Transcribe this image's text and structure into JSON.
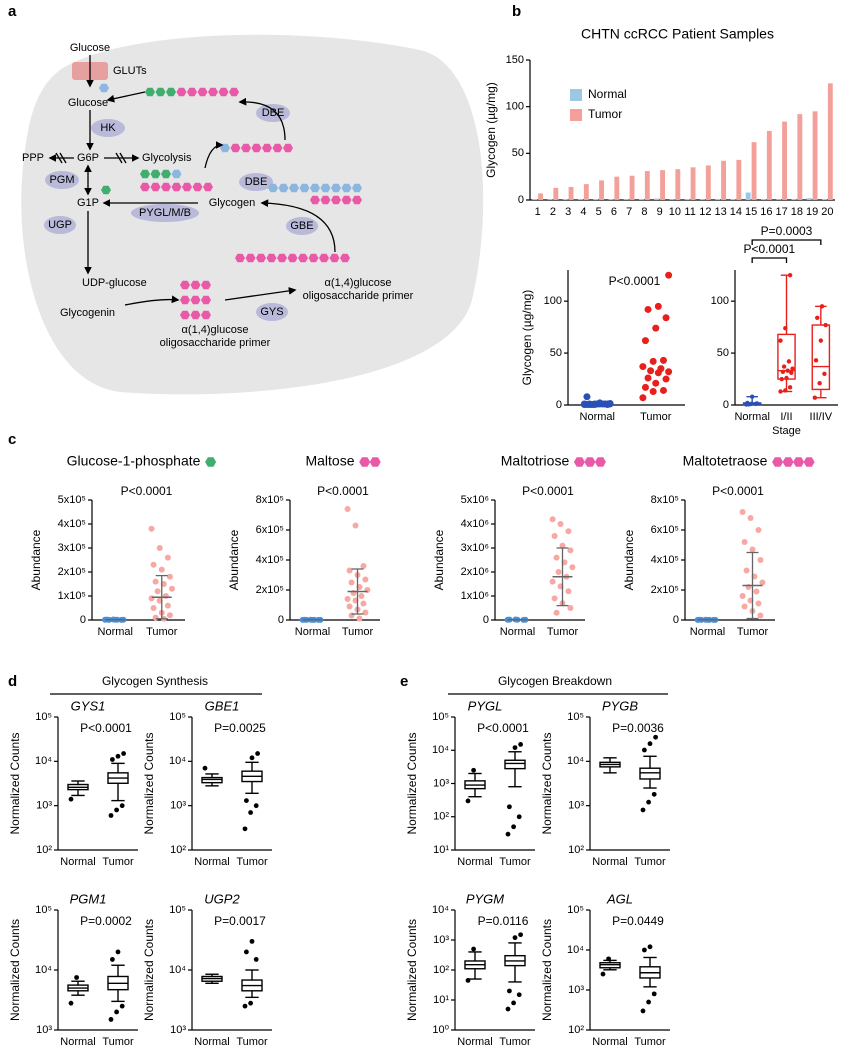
{
  "panel_labels": [
    "a",
    "b",
    "c",
    "d",
    "e"
  ],
  "diagram": {
    "glucose_in": "Glucose",
    "gluts": "GLUTs",
    "glucose": "Glucose",
    "hk": "HK",
    "ppp": "PPP",
    "g6p": "G6P",
    "glycolysis": "Glycolysis",
    "pgm": "PGM",
    "g1p": "G1P",
    "ugp": "UGP",
    "udp_glucose": "UDP-glucose",
    "glycogenin": "Glycogenin",
    "primer1": [
      "α(1,4)glucose",
      "oligosaccharide primer"
    ],
    "gys": "GYS",
    "pygl": "PYGL/M/B",
    "glycogen": "Glycogen",
    "gbe": "GBE",
    "primer2": [
      "α(1,4)glucose",
      "oligosaccharide primer"
    ],
    "dbe1": "DBE",
    "dbe2": "DBE"
  },
  "sections": [
    "Glycogen Synthesis",
    "Glycogen Breakdown"
  ],
  "chart_data": [
    {
      "type": "bar",
      "title": "CHTN ccRCC Patient Samples",
      "y_label": "Glycogen (µg/mg)",
      "categories": [
        "1",
        "2",
        "3",
        "4",
        "5",
        "6",
        "7",
        "8",
        "9",
        "10",
        "11",
        "12",
        "13",
        "14",
        "15",
        "16",
        "17",
        "18",
        "19",
        "20"
      ],
      "series": [
        {
          "name": "Normal",
          "color": "#9cc8e6",
          "values": [
            1,
            0.5,
            1,
            0.5,
            1,
            1,
            0.5,
            1,
            1.5,
            0.5,
            1,
            0.5,
            1,
            1,
            8,
            1,
            0.5,
            1,
            2,
            1
          ]
        },
        {
          "name": "Tumor",
          "color": "#f4a09a",
          "values": [
            7,
            13,
            14,
            17,
            21,
            25,
            26,
            31,
            32,
            33,
            35,
            37,
            42,
            43,
            62,
            74,
            84,
            92,
            95,
            125
          ]
        }
      ],
      "ylim": [
        0,
        150
      ],
      "yticks": [
        0,
        50,
        100,
        150
      ]
    },
    {
      "type": "dot",
      "y_label": "Glycogen (µg/mg)",
      "categories": [
        "Normal",
        "Tumor"
      ],
      "values": [
        [
          1,
          0.5,
          1,
          0.5,
          1,
          1,
          0.5,
          1,
          1.5,
          0.5,
          1,
          0.5,
          1,
          1,
          8,
          1,
          0.5,
          1,
          2,
          1
        ],
        [
          7,
          13,
          14,
          17,
          21,
          25,
          26,
          31,
          32,
          33,
          35,
          37,
          42,
          43,
          62,
          74,
          84,
          92,
          95,
          125
        ]
      ],
      "colors": [
        "#2a4fb5",
        "#e8201c"
      ],
      "ylim": [
        0,
        130
      ],
      "yticks": [
        0,
        50,
        100
      ],
      "annotation": "P<0.0001"
    },
    {
      "type": "box",
      "x_label": "Stage",
      "categories": [
        "Normal",
        "I/II",
        "III/IV"
      ],
      "colors": [
        "#2a4fb5",
        "#e8201c",
        "#e8201c"
      ],
      "boxes": [
        {
          "whislo": 0.5,
          "q1": 0.5,
          "med": 1,
          "q3": 2,
          "whishi": 8,
          "points": [
            0.5,
            1,
            1,
            2,
            8,
            1.5,
            0.5
          ]
        },
        {
          "whislo": 13,
          "q1": 25,
          "med": 33,
          "q3": 68,
          "whishi": 125,
          "points": [
            13,
            14,
            17,
            25,
            26,
            31,
            32,
            33,
            35,
            37,
            42,
            62,
            74,
            125
          ]
        },
        {
          "whislo": 7,
          "q1": 15,
          "med": 37,
          "q3": 77,
          "whishi": 95,
          "points": [
            7,
            21,
            30,
            43,
            62,
            77,
            84,
            95
          ]
        }
      ],
      "ylim": [
        0,
        130
      ],
      "yticks": [
        0,
        50,
        100
      ],
      "annotations": [
        "P<0.0001",
        "P=0.0003"
      ]
    },
    {
      "type": "dot",
      "title": "Glucose-1-phosphate",
      "y_label": "Abundance",
      "categories": [
        "Normal",
        "Tumor"
      ],
      "colors": [
        "#4a90d9",
        "#f7a8a3"
      ],
      "values": [
        [
          1000,
          2000,
          500,
          1500,
          800,
          1200,
          600,
          900
        ],
        [
          380000,
          300000,
          260000,
          230000,
          210000,
          180000,
          160000,
          150000,
          130000,
          120000,
          100000,
          90000,
          80000,
          60000,
          50000,
          30000,
          20000,
          10000,
          5000
        ]
      ],
      "mean": [
        1000,
        95000
      ],
      "sd": [
        500,
        90000
      ],
      "ylim": [
        0,
        500000
      ],
      "yticks": [
        0,
        {
          "value": 100000,
          "label": "1x10⁵"
        },
        {
          "value": 200000,
          "label": "2x10⁵"
        },
        {
          "value": 300000,
          "label": "3x10⁵"
        },
        {
          "value": 400000,
          "label": "4x10⁵"
        },
        {
          "value": 500000,
          "label": "5x10⁵"
        }
      ],
      "annotation": "P<0.0001"
    },
    {
      "type": "dot",
      "title": "Maltose",
      "y_label": "Abundance",
      "categories": [
        "Normal",
        "Tumor"
      ],
      "colors": [
        "#4a90d9",
        "#f7a8a3"
      ],
      "values": [
        [
          1000,
          2000,
          500,
          1500,
          800,
          1200,
          600,
          900
        ],
        [
          740000,
          630000,
          360000,
          330000,
          300000,
          270000,
          250000,
          220000,
          200000,
          180000,
          160000,
          140000,
          130000,
          110000,
          90000,
          70000,
          50000,
          30000,
          10000
        ]
      ],
      "mean": [
        2000,
        190000
      ],
      "sd": [
        1000,
        150000
      ],
      "ylim": [
        0,
        800000
      ],
      "yticks": [
        0,
        {
          "value": 200000,
          "label": "2x10⁵"
        },
        {
          "value": 400000,
          "label": "4x10⁵"
        },
        {
          "value": 600000,
          "label": "6x10⁵"
        },
        {
          "value": 800000,
          "label": "8x10⁵"
        }
      ],
      "annotation": "P<0.0001"
    },
    {
      "type": "dot",
      "title": "Maltotriose",
      "y_label": "Abundance",
      "categories": [
        "Normal",
        "Tumor"
      ],
      "colors": [
        "#4a90d9",
        "#f7a8a3"
      ],
      "values": [
        [
          10000,
          20000,
          5000,
          15000,
          8000,
          12000
        ],
        [
          4200000,
          4000000,
          3700000,
          3500000,
          3100000,
          2900000,
          2600000,
          2400000,
          2200000,
          2000000,
          1800000,
          1600000,
          1400000,
          1200000,
          900000,
          700000,
          500000,
          300000
        ]
      ],
      "mean": [
        10000,
        1800000
      ],
      "sd": [
        5000,
        1200000
      ],
      "ylim": [
        0,
        5000000
      ],
      "yticks": [
        0,
        {
          "value": 1000000,
          "label": "1x10⁶"
        },
        {
          "value": 2000000,
          "label": "2x10⁶"
        },
        {
          "value": 3000000,
          "label": "3x10⁶"
        },
        {
          "value": 4000000,
          "label": "4x10⁶"
        },
        {
          "value": 5000000,
          "label": "5x10⁶"
        }
      ],
      "annotation": "P<0.0001"
    },
    {
      "type": "dot",
      "title": "Maltotetraose",
      "y_label": "Abundance",
      "categories": [
        "Normal",
        "Tumor"
      ],
      "colors": [
        "#4a90d9",
        "#f7a8a3"
      ],
      "values": [
        [
          1000,
          2000,
          500,
          1500,
          800,
          1200,
          600,
          900
        ],
        [
          720000,
          680000,
          600000,
          520000,
          470000,
          400000,
          330000,
          290000,
          250000,
          220000,
          190000,
          160000,
          130000,
          110000,
          90000,
          60000,
          30000
        ]
      ],
      "mean": [
        2000,
        230000
      ],
      "sd": [
        1000,
        220000
      ],
      "ylim": [
        0,
        800000
      ],
      "yticks": [
        0,
        {
          "value": 200000,
          "label": "2x10⁵"
        },
        {
          "value": 400000,
          "label": "4x10⁵"
        },
        {
          "value": 600000,
          "label": "6x10⁵"
        },
        {
          "value": 800000,
          "label": "8x10⁵"
        }
      ],
      "annotation": "P<0.0001"
    },
    {
      "type": "box",
      "title": "GYS1",
      "title_color": "#e8201c",
      "y_label": "Normalized Counts",
      "log": true,
      "categories": [
        "Normal",
        "Tumor"
      ],
      "colors": [
        "#000000",
        "#000000"
      ],
      "boxes": [
        {
          "whislo": 1700,
          "q1": 2300,
          "med": 2600,
          "q3": 3000,
          "whishi": 3600,
          "outliers": [
            1400
          ]
        },
        {
          "whislo": 1300,
          "q1": 3200,
          "med": 4200,
          "q3": 5500,
          "whishi": 9000,
          "outliers": [
            600,
            800,
            1000,
            11000,
            13000,
            15000
          ]
        }
      ],
      "ylim": [
        100,
        100000
      ],
      "yticks": [
        {
          "value": 100,
          "label": "10²"
        },
        {
          "value": 1000,
          "label": "10³"
        },
        {
          "value": 10000,
          "label": "10⁴"
        },
        {
          "value": 100000,
          "label": "10⁵"
        }
      ],
      "annotation": "P<0.0001"
    },
    {
      "type": "box",
      "title": "GBE1",
      "title_color": "#e8201c",
      "y_label": "Normalized Counts",
      "log": true,
      "categories": [
        "Normal",
        "Tumor"
      ],
      "colors": [
        "#000000",
        "#000000"
      ],
      "boxes": [
        {
          "whislo": 2800,
          "q1": 3300,
          "med": 3900,
          "q3": 4300,
          "whishi": 5200,
          "outliers": [
            7000
          ]
        },
        {
          "whislo": 1900,
          "q1": 3500,
          "med": 4600,
          "q3": 6000,
          "whishi": 9500,
          "outliers": [
            300,
            700,
            1000,
            1300,
            12000,
            15000
          ]
        }
      ],
      "ylim": [
        100,
        100000
      ],
      "yticks": [
        {
          "value": 100,
          "label": "10²"
        },
        {
          "value": 1000,
          "label": "10³"
        },
        {
          "value": 10000,
          "label": "10⁴"
        },
        {
          "value": 100000,
          "label": "10⁵"
        }
      ],
      "annotation": "P=0.0025"
    },
    {
      "type": "box",
      "title": "PGM1",
      "title_color": "#e8201c",
      "y_label": "Normalized Counts",
      "log": true,
      "categories": [
        "Normal",
        "Tumor"
      ],
      "colors": [
        "#000000",
        "#000000"
      ],
      "boxes": [
        {
          "whislo": 3800,
          "q1": 4500,
          "med": 5000,
          "q3": 5600,
          "whishi": 6500,
          "outliers": [
            2800,
            7500
          ]
        },
        {
          "whislo": 3000,
          "q1": 4700,
          "med": 6000,
          "q3": 7800,
          "whishi": 12000,
          "outliers": [
            1500,
            2000,
            2500,
            15000,
            20000
          ]
        }
      ],
      "ylim": [
        1000,
        100000
      ],
      "yticks": [
        {
          "value": 1000,
          "label": "10³"
        },
        {
          "value": 10000,
          "label": "10⁴"
        },
        {
          "value": 100000,
          "label": "10⁵"
        }
      ],
      "annotation": "P=0.0002"
    },
    {
      "type": "box",
      "title": "UGP2",
      "title_color": "#000000",
      "y_label": "Normalized Counts",
      "log": true,
      "categories": [
        "Normal",
        "Tumor"
      ],
      "colors": [
        "#000000",
        "#000000"
      ],
      "boxes": [
        {
          "whislo": 6000,
          "q1": 6500,
          "med": 7200,
          "q3": 7800,
          "whishi": 8500,
          "outliers": []
        },
        {
          "whislo": 3500,
          "q1": 4500,
          "med": 5500,
          "q3": 6800,
          "whishi": 10000,
          "outliers": [
            2500,
            2800,
            15000,
            20000,
            30000
          ]
        }
      ],
      "ylim": [
        1000,
        100000
      ],
      "yticks": [
        {
          "value": 1000,
          "label": "10³"
        },
        {
          "value": 10000,
          "label": "10⁴"
        },
        {
          "value": 100000,
          "label": "10⁵"
        }
      ],
      "annotation": "P=0.0017"
    },
    {
      "type": "box",
      "title": "PYGL",
      "title_color": "#e8201c",
      "y_label": "Normalized Counts",
      "log": true,
      "categories": [
        "Normal",
        "Tumor"
      ],
      "colors": [
        "#000000",
        "#000000"
      ],
      "boxes": [
        {
          "whislo": 400,
          "q1": 700,
          "med": 900,
          "q3": 1200,
          "whishi": 2000,
          "outliers": [
            300,
            2500
          ]
        },
        {
          "whislo": 800,
          "q1": 2800,
          "med": 4000,
          "q3": 5000,
          "whishi": 9000,
          "outliers": [
            30,
            50,
            100,
            200,
            12000,
            15000
          ]
        }
      ],
      "ylim": [
        10,
        100000
      ],
      "yticks": [
        {
          "value": 10,
          "label": "10¹"
        },
        {
          "value": 100,
          "label": "10²"
        },
        {
          "value": 1000,
          "label": "10³"
        },
        {
          "value": 10000,
          "label": "10⁴"
        },
        {
          "value": 100000,
          "label": "10⁵"
        }
      ],
      "annotation": "P<0.0001"
    },
    {
      "type": "box",
      "title": "PYGB",
      "title_color": "#000000",
      "y_label": "Normalized Counts",
      "log": true,
      "categories": [
        "Normal",
        "Tumor"
      ],
      "colors": [
        "#000000",
        "#000000"
      ],
      "boxes": [
        {
          "whislo": 5500,
          "q1": 7500,
          "med": 8500,
          "q3": 9500,
          "whishi": 12000,
          "outliers": []
        },
        {
          "whislo": 2500,
          "q1": 4000,
          "med": 5500,
          "q3": 7000,
          "whishi": 13000,
          "outliers": [
            800,
            1200,
            1800,
            18000,
            25000,
            35000
          ]
        }
      ],
      "ylim": [
        100,
        100000
      ],
      "yticks": [
        {
          "value": 100,
          "label": "10²"
        },
        {
          "value": 1000,
          "label": "10³"
        },
        {
          "value": 10000,
          "label": "10⁴"
        },
        {
          "value": 100000,
          "label": "10⁵"
        }
      ],
      "annotation": "P=0.0036"
    },
    {
      "type": "box",
      "title": "PYGM",
      "title_color": "#e8201c",
      "y_label": "Normalized Counts",
      "log": true,
      "categories": [
        "Normal",
        "Tumor"
      ],
      "colors": [
        "#000000",
        "#000000"
      ],
      "boxes": [
        {
          "whislo": 50,
          "q1": 110,
          "med": 150,
          "q3": 200,
          "whishi": 400,
          "outliers": [
            45,
            500
          ]
        },
        {
          "whislo": 40,
          "q1": 140,
          "med": 200,
          "q3": 300,
          "whishi": 800,
          "outliers": [
            5,
            8,
            15,
            20,
            1200,
            1500
          ]
        }
      ],
      "ylim": [
        1,
        10000
      ],
      "yticks": [
        {
          "value": 1,
          "label": "10⁰"
        },
        {
          "value": 10,
          "label": "10¹"
        },
        {
          "value": 100,
          "label": "10²"
        },
        {
          "value": 1000,
          "label": "10³"
        },
        {
          "value": 10000,
          "label": "10⁴"
        }
      ],
      "annotation": "P=0.0116"
    },
    {
      "type": "box",
      "title": "AGL",
      "title_color": "#000000",
      "y_label": "Normalized Counts",
      "log": true,
      "categories": [
        "Normal",
        "Tumor"
      ],
      "colors": [
        "#000000",
        "#000000"
      ],
      "boxes": [
        {
          "whislo": 3200,
          "q1": 3600,
          "med": 4300,
          "q3": 4800,
          "whishi": 5500,
          "outliers": [
            2500,
            6000
          ]
        },
        {
          "whislo": 1200,
          "q1": 2000,
          "med": 2700,
          "q3": 3800,
          "whishi": 6500,
          "outliers": [
            300,
            500,
            800,
            10000,
            12000
          ]
        }
      ],
      "ylim": [
        100,
        100000
      ],
      "yticks": [
        {
          "value": 100,
          "label": "10²"
        },
        {
          "value": 1000,
          "label": "10³"
        },
        {
          "value": 10000,
          "label": "10⁴"
        },
        {
          "value": 100000,
          "label": "10⁵"
        }
      ],
      "annotation": "P=0.0449"
    }
  ]
}
